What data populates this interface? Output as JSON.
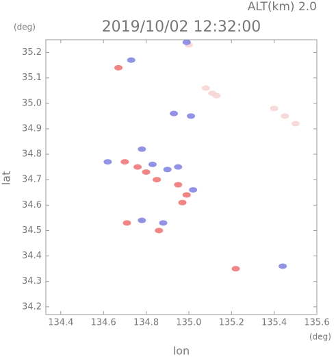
{
  "chart_data": {
    "type": "scatter",
    "altitude": "ALT(km)  2.0",
    "title": "2019/10/02 12:32:00",
    "y_unit": "(deg)",
    "x_unit": "(deg)",
    "y_label": "lat",
    "x_label": "lon",
    "xlim": [
      134.33,
      135.6
    ],
    "ylim": [
      34.17,
      35.25
    ],
    "xticks": [
      134.4,
      134.6,
      134.8,
      {
        "value": 135,
        "label": "135.0"
      },
      135.2,
      135.4,
      135.6
    ],
    "yticks": [
      34.2,
      34.3,
      34.4,
      34.5,
      34.6,
      34.7,
      34.8,
      34.9,
      {
        "value": 35,
        "label": "35.0"
      },
      35.1,
      35.2
    ],
    "series": [
      {
        "color": "#f8d4d4",
        "x": [
          135.08,
          135.11,
          135.13,
          135.4,
          135.45,
          135.5,
          135.0
        ],
        "y": [
          35.06,
          35.04,
          35.03,
          34.98,
          34.95,
          34.92,
          35.23
        ]
      },
      {
        "color": "#f07070",
        "x": [
          134.67,
          134.7,
          134.76,
          134.8,
          134.85,
          134.95,
          134.97,
          134.99,
          134.86,
          134.71,
          135.22
        ],
        "y": [
          35.14,
          34.77,
          34.75,
          34.73,
          34.7,
          34.68,
          34.61,
          34.64,
          34.5,
          34.53,
          34.35
        ]
      },
      {
        "color": "#8080e0",
        "x": [
          134.62,
          134.78,
          134.83,
          134.9,
          134.95,
          135.02,
          134.88,
          134.78,
          135.44,
          134.99,
          134.93,
          135.01,
          134.73
        ],
        "y": [
          34.77,
          34.82,
          34.76,
          34.74,
          34.75,
          34.66,
          34.53,
          34.54,
          34.36,
          35.24,
          34.96,
          34.95,
          35.17
        ]
      }
    ]
  }
}
